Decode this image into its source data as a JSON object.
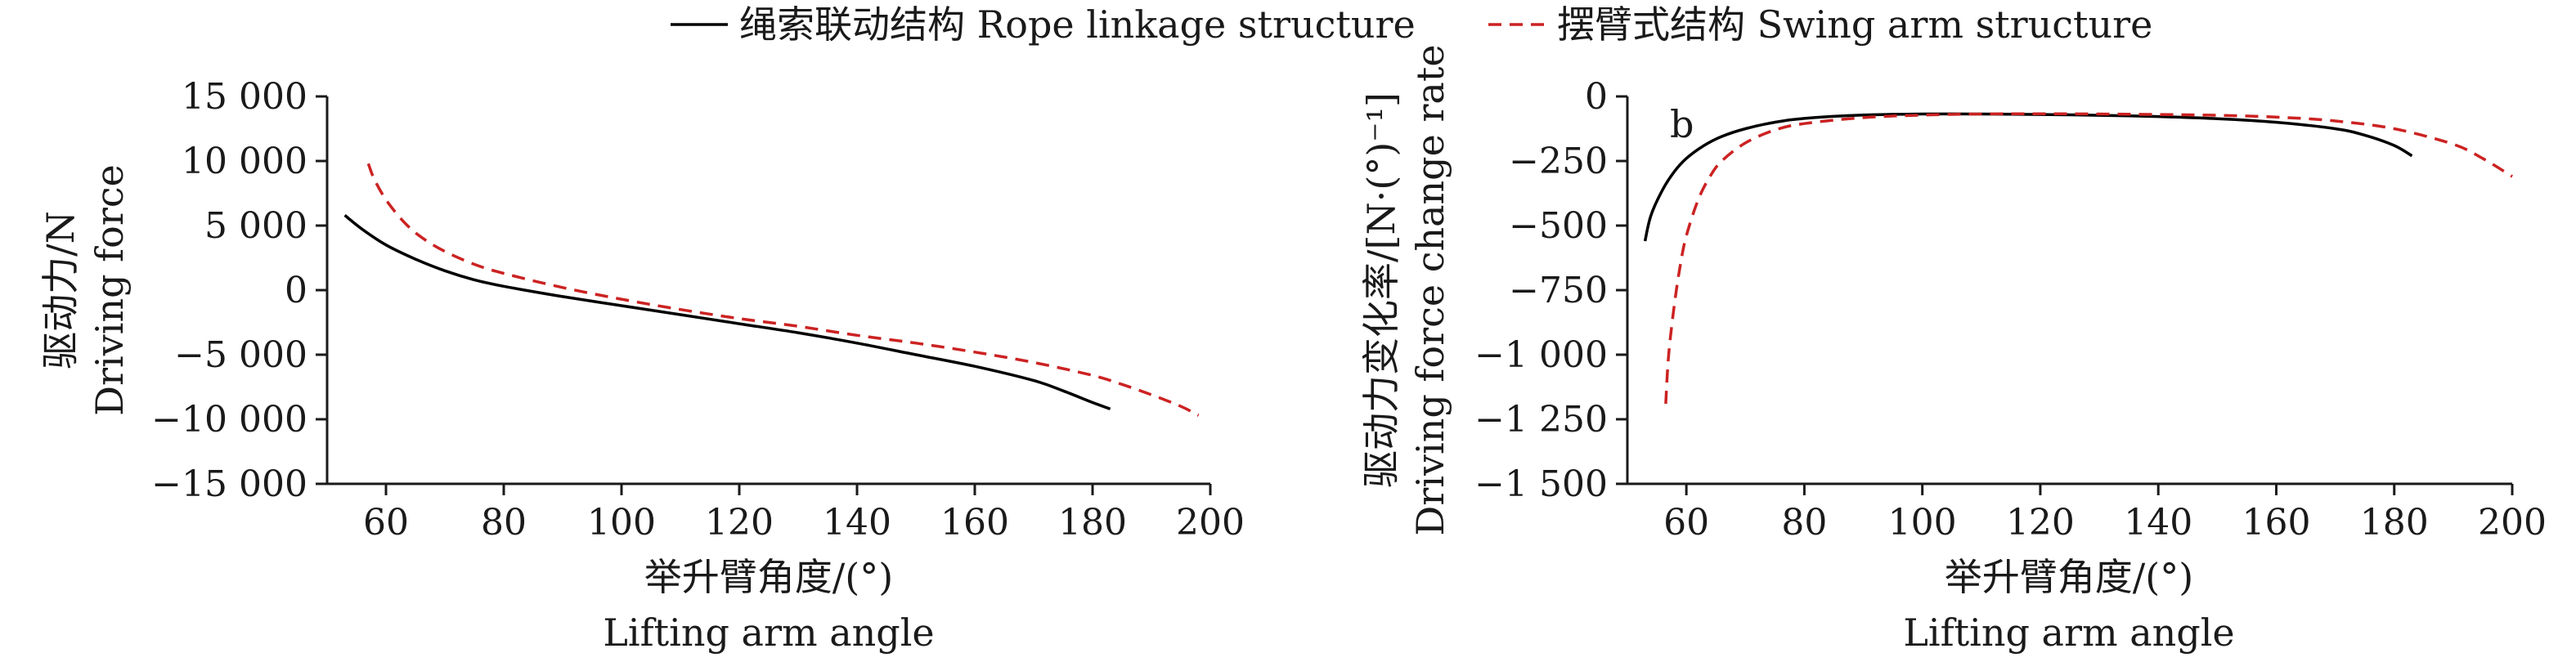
{
  "legend": [
    {
      "label": "绳索联动结构 Rope linkage structure",
      "color": "#000000",
      "style": "solid"
    },
    {
      "label": "摆臂式结构 Swing arm structure",
      "color": "#cc2222",
      "style": "dashed"
    }
  ],
  "chart_data": [
    {
      "type": "line",
      "panel_label": "",
      "ylabel_cn": "驱动力/N",
      "ylabel_en": "Driving force",
      "xlabel_cn": "举升臂角度/(°)",
      "xlabel_en": "Lifting arm angle",
      "xlim": [
        50,
        200
      ],
      "ylim": [
        -15000,
        15000
      ],
      "x_ticks": [
        60,
        80,
        100,
        120,
        140,
        160,
        180,
        200
      ],
      "x_tick_labels": [
        "60",
        "80",
        "100",
        "120",
        "140",
        "160",
        "180",
        "200"
      ],
      "y_ticks": [
        15000,
        10000,
        5000,
        0,
        -5000,
        -10000,
        -15000
      ],
      "y_tick_labels": [
        "15 000",
        "10 000",
        "5 000",
        "0",
        "−5 000",
        "−10 000",
        "−15 000"
      ],
      "series": [
        {
          "name": "绳索联动结构 Rope linkage structure",
          "color": "#000000",
          "style": "solid",
          "x": [
            53,
            56,
            60,
            65,
            70,
            75,
            80,
            90,
            100,
            110,
            120,
            130,
            140,
            150,
            160,
            170,
            175,
            180,
            183
          ],
          "y": [
            5800,
            4700,
            3500,
            2400,
            1500,
            800,
            300,
            -500,
            -1200,
            -1900,
            -2600,
            -3300,
            -4100,
            -5000,
            -5900,
            -7000,
            -7800,
            -8700,
            -9200
          ]
        },
        {
          "name": "摆臂式结构 Swing arm structure",
          "color": "#cc2222",
          "style": "dashed",
          "x": [
            57,
            58,
            60,
            63,
            66,
            70,
            75,
            80,
            90,
            100,
            110,
            120,
            130,
            140,
            150,
            160,
            170,
            180,
            185,
            190,
            195,
            198
          ],
          "y": [
            9800,
            8600,
            7000,
            5300,
            4100,
            3000,
            2000,
            1300,
            200,
            -700,
            -1500,
            -2200,
            -2800,
            -3500,
            -4100,
            -4800,
            -5600,
            -6600,
            -7300,
            -8100,
            -9000,
            -9700
          ]
        }
      ]
    },
    {
      "type": "line",
      "panel_label": "b",
      "ylabel_cn": "驱动力变化率/[N·(°)⁻¹]",
      "ylabel_en": "Driving force change rate",
      "xlabel_cn": "举升臂角度/(°)",
      "xlabel_en": "Lifting arm angle",
      "xlim": [
        50,
        200
      ],
      "ylim": [
        -1500,
        0
      ],
      "x_ticks": [
        60,
        80,
        100,
        120,
        140,
        160,
        180,
        200
      ],
      "x_tick_labels": [
        "60",
        "80",
        "100",
        "120",
        "140",
        "160",
        "180",
        "200"
      ],
      "y_ticks": [
        0,
        -250,
        -500,
        -750,
        -1000,
        -1250,
        -1500
      ],
      "y_tick_labels": [
        "0",
        "−250",
        "−500",
        "−750",
        "−1 000",
        "−1 250",
        "−1 500"
      ],
      "series": [
        {
          "name": "绳索联动结构 Rope linkage structure",
          "color": "#000000",
          "style": "solid",
          "x": [
            53,
            54,
            56,
            58,
            60,
            63,
            66,
            70,
            75,
            80,
            90,
            100,
            110,
            120,
            130,
            140,
            150,
            160,
            170,
            175,
            180,
            183
          ],
          "y": [
            -560,
            -460,
            -360,
            -290,
            -240,
            -190,
            -155,
            -125,
            -100,
            -85,
            -72,
            -68,
            -68,
            -70,
            -73,
            -78,
            -86,
            -100,
            -125,
            -150,
            -190,
            -230
          ]
        },
        {
          "name": "摆臂式结构 Swing arm structure",
          "color": "#cc2222",
          "style": "dashed",
          "x": [
            56.5,
            57,
            58,
            59,
            60,
            62,
            64,
            66,
            70,
            75,
            80,
            90,
            100,
            110,
            120,
            130,
            140,
            150,
            160,
            170,
            180,
            190,
            195,
            200
          ],
          "y": [
            -1190,
            -1000,
            -800,
            -650,
            -540,
            -400,
            -310,
            -250,
            -180,
            -130,
            -105,
            -82,
            -72,
            -68,
            -67,
            -68,
            -70,
            -73,
            -80,
            -95,
            -125,
            -185,
            -240,
            -310
          ]
        }
      ]
    }
  ]
}
